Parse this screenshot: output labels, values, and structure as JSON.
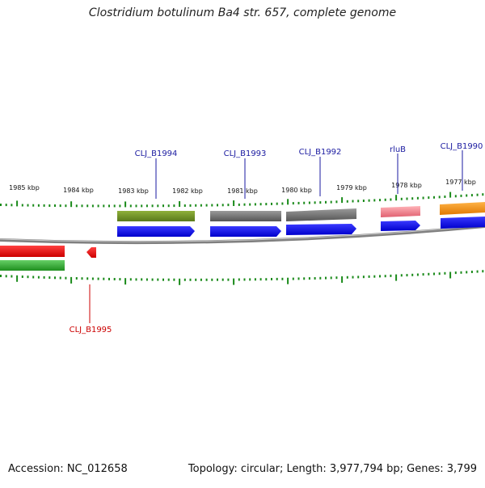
{
  "title": "Clostridium botulinum Ba4 str. 657, complete genome",
  "footer": {
    "accession": "Accession: NC_012658",
    "summary": "Topology: circular; Length: 3,977,794 bp; Genes: 3,799"
  },
  "colors": {
    "backbone": "#7a7a7a",
    "tick": "#1a8a1a",
    "cds": "#0000ff",
    "gene_label": "#1a1aa0",
    "reverse_gene_label": "#cc0000"
  },
  "kbp_labels": [
    "1985 kbp",
    "1984 kbp",
    "1983 kbp",
    "1982 kbp",
    "1981 kbp",
    "1980 kbp",
    "1979 kbp",
    "1978 kbp",
    "1977 kbp"
  ],
  "genes": [
    {
      "label": "CLJ_B1994",
      "strand": "+",
      "color": "#6b8e23",
      "icon": "arrow-right-icon"
    },
    {
      "label": "CLJ_B1993",
      "strand": "+",
      "color": "#6e6e6e",
      "icon": "arrow-right-icon"
    },
    {
      "label": "CLJ_B1992",
      "strand": "+",
      "color": "#6e6e6e",
      "icon": "arrow-right-icon"
    },
    {
      "label": "rluB",
      "strand": "+",
      "color": "#ee7f86",
      "icon": "arrow-right-icon"
    },
    {
      "label": "CLJ_B1990",
      "strand": "+",
      "color": "#f7930a",
      "icon": "arrow-right-icon"
    },
    {
      "label": "CLJ_B1995",
      "strand": "-",
      "color": "#ee1111",
      "icon": "arrow-left-icon"
    }
  ],
  "reverse_rna": {
    "color": "#2ea82e"
  }
}
